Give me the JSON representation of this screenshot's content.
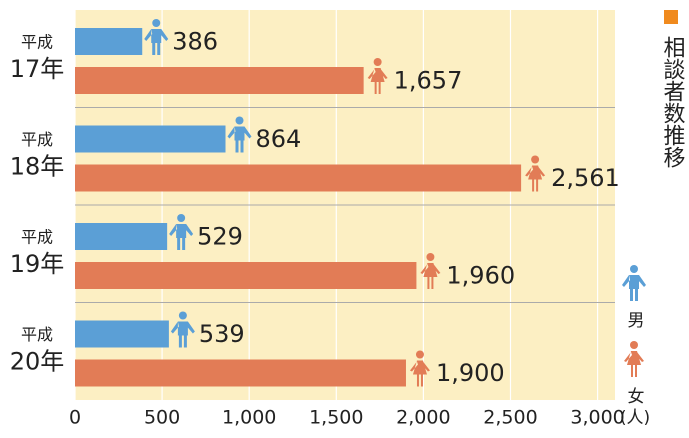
{
  "chart_data": {
    "type": "barh",
    "title": "相談者数推移",
    "xlabel": "(人)",
    "categories": [
      [
        "平成",
        "17年"
      ],
      [
        "平成",
        "18年"
      ],
      [
        "平成",
        "19年"
      ],
      [
        "平成",
        "20年"
      ]
    ],
    "series": [
      {
        "name": "男",
        "color": "#5b9fd6",
        "values": [
          386,
          864,
          529,
          539
        ]
      },
      {
        "name": "女",
        "color": "#e27c56",
        "values": [
          1657,
          2561,
          1960,
          1900
        ],
        "value_labels": [
          "1,657",
          "2,561",
          "1,960",
          "1,900"
        ]
      }
    ],
    "xlim": [
      0,
      3100
    ],
    "xticks": [
      0,
      500,
      {
        "value": 1000,
        "label": "1,000"
      },
      {
        "value": 1500,
        "label": "1,500"
      },
      {
        "value": 2000,
        "label": "2,000"
      },
      {
        "value": 2500,
        "label": "2,500"
      },
      {
        "value": 3000,
        "label": "3,000"
      }
    ],
    "grid": true
  }
}
